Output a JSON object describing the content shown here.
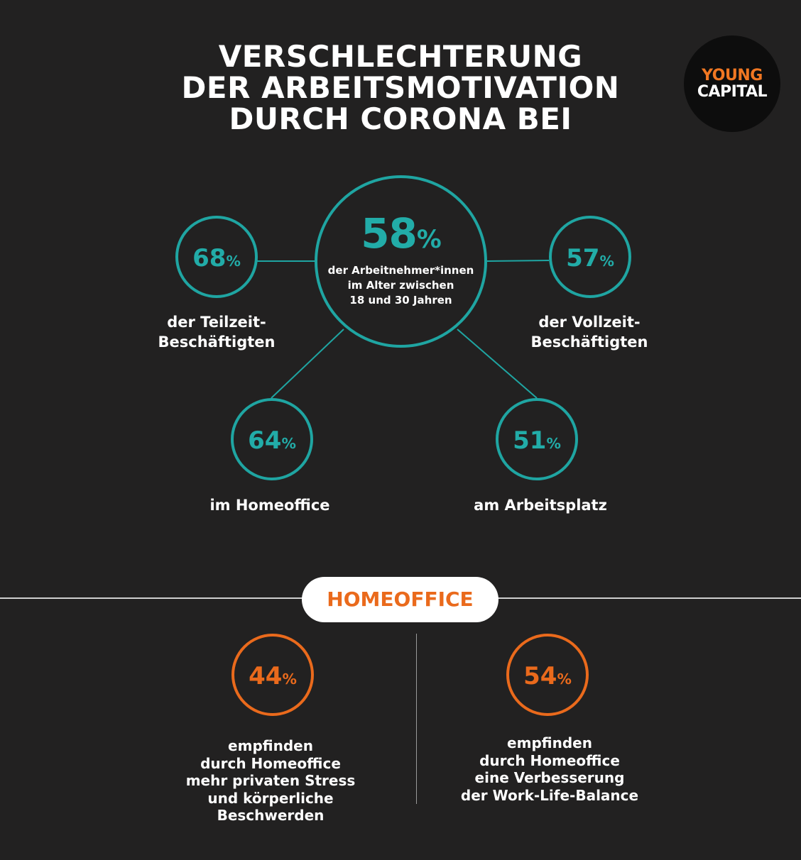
{
  "title": {
    "line1": "VERSCHLECHTERUNG",
    "line2": "DER ARBEITSMOTIVATION",
    "line3": "DURCH CORONA BEI"
  },
  "logo": {
    "line1": "YOUNG",
    "line2": "CAPITAL"
  },
  "percent_symbol": "%",
  "center": {
    "value": "58",
    "desc_line1": "der Arbeitnehmer*innen",
    "desc_line2": "im Alter zwischen",
    "desc_line3": "18 und 30 Jahren"
  },
  "nodes": {
    "teilzeit": {
      "value": "68",
      "label_line1": "der Teilzeit-",
      "label_line2": "Beschäftigten"
    },
    "vollzeit": {
      "value": "57",
      "label_line1": "der Vollzeit-",
      "label_line2": "Beschäftigten"
    },
    "homeoffice": {
      "value": "64",
      "label": "im Homeoffice"
    },
    "arbeitsplatz": {
      "value": "51",
      "label": "am Arbeitsplatz"
    }
  },
  "section_pill": "HOMEOFFICE",
  "homeoffice_stats": {
    "stress": {
      "value": "44",
      "l1": "empfinden",
      "l2": "durch Homeoffice",
      "l3": "mehr privaten Stress",
      "l4": "und körperliche",
      "l5": "Beschwerden"
    },
    "balance": {
      "value": "54",
      "l1": "empfinden",
      "l2": "durch Homeoffice",
      "l3": "eine Verbesserung",
      "l4": "der Work-Life-Balance"
    }
  },
  "colors": {
    "background": "#222121",
    "teal": "#1fa5a2",
    "orange": "#ea6a1c",
    "white": "#ffffff"
  }
}
